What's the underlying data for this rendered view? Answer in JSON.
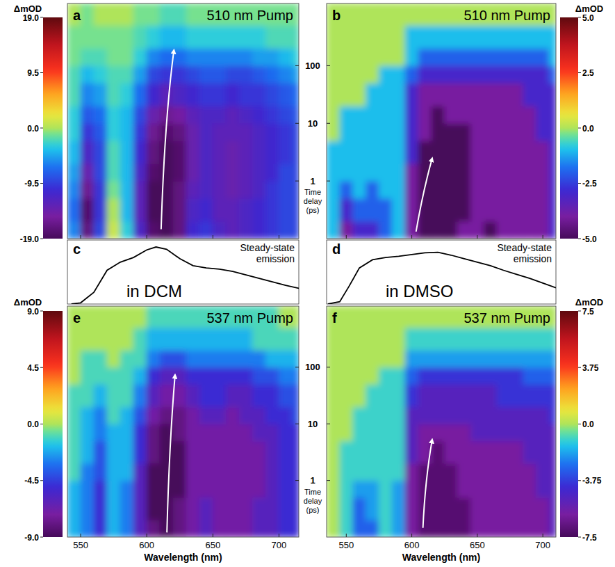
{
  "chart_data": [
    {
      "type": "heatmap",
      "label": "a",
      "title": "510 nm Pump",
      "ylabel": "Time delay (ps)",
      "log": "y",
      "tick_labels": "y",
      "xlim": [
        540,
        715
      ],
      "xticks": [
        550,
        600,
        650,
        700
      ],
      "ylim": [
        0.1,
        1200
      ],
      "yticks": [
        1,
        10,
        100
      ],
      "x_edges": [
        540,
        550,
        560,
        570,
        580,
        590,
        600,
        610,
        620,
        630,
        640,
        650,
        660,
        670,
        680,
        690,
        700,
        710,
        715
      ],
      "y_edges": [
        0.1,
        0.2,
        0.5,
        1,
        2,
        5,
        10,
        20,
        50,
        100,
        200,
        500,
        1200
      ],
      "cells": [
        [
          -6,
          -17,
          -9,
          1,
          -3,
          -12,
          -18,
          -19,
          -17,
          -11,
          -10,
          -12,
          -13,
          -12,
          -11,
          -10,
          -9,
          -9
        ],
        [
          -7,
          -18,
          -10,
          0,
          -4,
          -13,
          -19,
          -19,
          -17,
          -12,
          -11,
          -13,
          -13,
          -12,
          -11,
          -10,
          -9,
          -9
        ],
        [
          -6,
          -16,
          -10,
          -1,
          -4,
          -13,
          -19,
          -19,
          -17,
          -13,
          -12,
          -13,
          -14,
          -13,
          -12,
          -10,
          -9,
          -9
        ],
        [
          -5,
          -14,
          -9,
          -2,
          -4,
          -12,
          -18,
          -19,
          -18,
          -14,
          -12,
          -13,
          -14,
          -13,
          -12,
          -11,
          -9,
          -9
        ],
        [
          -4,
          -12,
          -9,
          -2,
          -4,
          -11,
          -17,
          -19,
          -18,
          -14,
          -12,
          -13,
          -14,
          -13,
          -12,
          -11,
          -10,
          -9
        ],
        [
          -3,
          -10,
          -8,
          -3,
          -4,
          -10,
          -16,
          -18,
          -17,
          -14,
          -12,
          -13,
          -13,
          -13,
          -12,
          -11,
          -10,
          -9
        ],
        [
          -3,
          -8,
          -7,
          -3,
          -4,
          -9,
          -14,
          -16,
          -15,
          -13,
          -12,
          -12,
          -13,
          -12,
          -11,
          -10,
          -9,
          -8
        ],
        [
          -2,
          -6,
          -5,
          -2,
          -3,
          -7,
          -11,
          -13,
          -12,
          -11,
          -10,
          -10,
          -11,
          -10,
          -10,
          -9,
          -8,
          -7
        ],
        [
          -2,
          -4,
          -3,
          -2,
          -2,
          -5,
          -9,
          -10,
          -10,
          -9,
          -8,
          -8,
          -9,
          -9,
          -8,
          -7,
          -6,
          -5
        ],
        [
          -1,
          -2,
          -2,
          -1,
          -1,
          -3,
          -6,
          -7,
          -7,
          -6,
          -6,
          -6,
          -6,
          -6,
          -5,
          -5,
          -4,
          -3
        ],
        [
          -1,
          -1,
          -1,
          -1,
          -1,
          -2,
          -3,
          -4,
          -4,
          -3,
          -3,
          -3,
          -3,
          -3,
          -3,
          -2,
          -2,
          -2
        ],
        [
          0,
          -1,
          0,
          0,
          0,
          -1,
          -1,
          -2,
          -2,
          -1,
          -1,
          -1,
          -1,
          -1,
          -1,
          -1,
          -1,
          -1
        ]
      ],
      "colorbar": {
        "label": "ΔmOD",
        "range": [
          -19,
          19
        ],
        "ticks": [
          {
            "value": 19,
            "label": "19.0"
          },
          9.5,
          {
            "value": 0,
            "label": "0.0"
          },
          -9.5,
          {
            "value": -19,
            "label": "-19.0"
          }
        ]
      }
    },
    {
      "type": "heatmap",
      "label": "b",
      "title": "510 nm Pump",
      "log": "y",
      "tick_labels": false,
      "xlim": [
        535,
        710
      ],
      "xticks": [
        550,
        600,
        650,
        700
      ],
      "ylim": [
        0.1,
        1200
      ],
      "yticks": [
        1,
        10,
        100
      ],
      "x_edges": [
        535,
        545,
        555,
        565,
        575,
        585,
        595,
        605,
        615,
        625,
        635,
        645,
        655,
        665,
        675,
        685,
        695,
        705,
        710
      ],
      "y_edges": [
        0.1,
        0.2,
        0.5,
        1,
        2,
        5,
        10,
        20,
        50,
        100,
        200,
        500,
        1200
      ],
      "cells": [
        [
          -1,
          -4,
          -3,
          -3,
          -2,
          -1,
          -4,
          -5,
          -5,
          -5,
          -4,
          -4,
          -5,
          -4,
          -4,
          -4,
          -4,
          -3
        ],
        [
          -1,
          -3,
          -2,
          -2,
          -2,
          -1,
          -4,
          -5,
          -5,
          -5,
          -5,
          -4,
          -4,
          -4,
          -4,
          -4,
          -4,
          -3
        ],
        [
          -1,
          -2,
          -1,
          -2,
          -1,
          -1,
          -4,
          -5,
          -5,
          -5,
          -5,
          -4,
          -4,
          -4,
          -4,
          -4,
          -4,
          -3
        ],
        [
          -1,
          -1,
          -1,
          -1,
          -1,
          -1,
          -4,
          -5,
          -5,
          -5,
          -5,
          -4,
          -4,
          -4,
          -4,
          -4,
          -4,
          -3
        ],
        [
          -1,
          -1,
          -1,
          -1,
          -1,
          -1,
          -3,
          -5,
          -5,
          -5,
          -5,
          -4,
          -4,
          -4,
          -4,
          -4,
          -4,
          -3
        ],
        [
          0,
          -1,
          -1,
          -1,
          -1,
          -1,
          -3,
          -4,
          -5,
          -5,
          -5,
          -4,
          -4,
          -4,
          -4,
          -4,
          -3,
          -3
        ],
        [
          0,
          -1,
          -1,
          -1,
          -1,
          -1,
          -3,
          -4,
          -5,
          -4,
          -4,
          -4,
          -4,
          -4,
          -4,
          -4,
          -3,
          -3
        ],
        [
          0,
          0,
          0,
          -1,
          -1,
          -1,
          -3,
          -4,
          -4,
          -4,
          -4,
          -4,
          -4,
          -4,
          -4,
          -3,
          -3,
          -3
        ],
        [
          0,
          0,
          0,
          0,
          -1,
          -1,
          -2,
          -3,
          -3,
          -3,
          -3,
          -3,
          -3,
          -3,
          -3,
          -3,
          -3,
          -2
        ],
        [
          0,
          0,
          0,
          0,
          0,
          0,
          -1,
          -2,
          -2,
          -2,
          -2,
          -2,
          -2,
          -2,
          -2,
          -2,
          -2,
          -1
        ],
        [
          0,
          0,
          0,
          0,
          0,
          0,
          -1,
          -1,
          -1,
          -1,
          -1,
          -1,
          -1,
          -1,
          -1,
          -1,
          -1,
          -1
        ],
        [
          0,
          0,
          0,
          0,
          0,
          0,
          0,
          0,
          0,
          0,
          0,
          0,
          0,
          0,
          0,
          0,
          0,
          0
        ]
      ],
      "colorbar": {
        "label": "ΔmOD",
        "range": [
          -5,
          5
        ],
        "ticks": [
          {
            "value": 5,
            "label": "5.0"
          },
          2.5,
          {
            "value": 0,
            "label": "0.0"
          },
          -2.5,
          {
            "value": -5,
            "label": "-5.0"
          }
        ]
      }
    },
    {
      "type": "line",
      "label": "c",
      "title": "in DCM",
      "annotation": "Steady-state emission",
      "tick_labels": false,
      "xlim": [
        540,
        715
      ],
      "ylim": [
        0,
        1.1
      ],
      "x": [
        543,
        550,
        560,
        570,
        580,
        590,
        600,
        607,
        615,
        625,
        635,
        645,
        655,
        665,
        675,
        685,
        695,
        705,
        715
      ],
      "values": [
        0,
        0.02,
        0.2,
        0.58,
        0.72,
        0.8,
        0.93,
        0.98,
        0.94,
        0.78,
        0.66,
        0.62,
        0.6,
        0.56,
        0.5,
        0.44,
        0.38,
        0.32,
        0.27
      ],
      "color": "#000000"
    },
    {
      "type": "line",
      "label": "d",
      "title": "in DMSO",
      "annotation": "Steady-state emission",
      "tick_labels": false,
      "xlim": [
        535,
        710
      ],
      "ylim": [
        0,
        1.1
      ],
      "x": [
        536,
        545,
        552,
        560,
        570,
        580,
        590,
        600,
        610,
        620,
        630,
        640,
        650,
        660,
        670,
        680,
        690,
        700,
        710
      ],
      "values": [
        0,
        0.04,
        0.3,
        0.62,
        0.76,
        0.8,
        0.82,
        0.85,
        0.88,
        0.89,
        0.84,
        0.78,
        0.72,
        0.66,
        0.58,
        0.51,
        0.44,
        0.36,
        0.28
      ],
      "color": "#000000"
    },
    {
      "type": "heatmap",
      "label": "e",
      "title": "537 nm Pump",
      "xlabel": "Wavelength (nm)",
      "ylabel": "Time delay (ps)",
      "log": "y",
      "xlim": [
        540,
        715
      ],
      "xticks": [
        550,
        600,
        650,
        700
      ],
      "ylim": [
        0.1,
        1200
      ],
      "yticks": [
        1,
        10,
        100
      ],
      "x_edges": [
        540,
        550,
        560,
        570,
        580,
        590,
        600,
        610,
        620,
        630,
        640,
        650,
        660,
        670,
        680,
        690,
        700,
        710,
        715
      ],
      "y_edges": [
        0.1,
        0.2,
        0.5,
        1,
        2,
        5,
        10,
        20,
        50,
        100,
        200,
        500,
        1200
      ],
      "cells": [
        [
          -2,
          -3,
          -5,
          -2,
          -3,
          -6,
          -8,
          -9,
          -8,
          -7,
          -6,
          -7,
          -7,
          -7,
          -6,
          -6,
          -5,
          -5
        ],
        [
          -2,
          -3,
          -5,
          -2,
          -3,
          -6,
          -9,
          -9,
          -8,
          -7,
          -6,
          -7,
          -7,
          -7,
          -6,
          -6,
          -5,
          -5
        ],
        [
          -2,
          -3,
          -5,
          -2,
          -3,
          -6,
          -9,
          -9,
          -9,
          -7,
          -7,
          -7,
          -7,
          -7,
          -7,
          -6,
          -5,
          -5
        ],
        [
          -1,
          -3,
          -4,
          -2,
          -2,
          -6,
          -9,
          -9,
          -9,
          -7,
          -7,
          -7,
          -7,
          -7,
          -7,
          -6,
          -5,
          -5
        ],
        [
          -1,
          -2,
          -4,
          -2,
          -2,
          -5,
          -8,
          -9,
          -9,
          -7,
          -7,
          -7,
          -7,
          -7,
          -7,
          -6,
          -5,
          -5
        ],
        [
          -1,
          -2,
          -3,
          -2,
          -2,
          -5,
          -8,
          -9,
          -8,
          -7,
          -7,
          -7,
          -7,
          -7,
          -6,
          -6,
          -5,
          -5
        ],
        [
          -1,
          -2,
          -3,
          -1,
          -2,
          -4,
          -7,
          -8,
          -8,
          -7,
          -6,
          -6,
          -7,
          -6,
          -6,
          -5,
          -5,
          -4
        ],
        [
          -1,
          -1,
          -2,
          -1,
          -1,
          -3,
          -6,
          -7,
          -7,
          -6,
          -5,
          -5,
          -6,
          -6,
          -5,
          -5,
          -4,
          -4
        ],
        [
          0,
          -1,
          -1,
          -1,
          -1,
          -2,
          -5,
          -6,
          -6,
          -5,
          -5,
          -5,
          -5,
          -5,
          -4,
          -4,
          -3,
          -3
        ],
        [
          0,
          -1,
          -1,
          0,
          -1,
          -1,
          -3,
          -4,
          -4,
          -3,
          -3,
          -3,
          -3,
          -3,
          -3,
          -2,
          -2,
          -2
        ],
        [
          0,
          0,
          0,
          0,
          0,
          -1,
          -2,
          -2,
          -2,
          -2,
          -2,
          -2,
          -2,
          -2,
          -1,
          -1,
          -1,
          -1
        ],
        [
          0,
          0,
          0,
          0,
          0,
          0,
          -1,
          -1,
          -1,
          -1,
          -1,
          -1,
          -1,
          -1,
          -1,
          -1,
          0,
          0
        ]
      ],
      "colorbar": {
        "label": "ΔmOD",
        "range": [
          -9,
          9
        ],
        "ticks": [
          {
            "value": 9,
            "label": "9.0"
          },
          4.5,
          {
            "value": 0,
            "label": "0.0"
          },
          -4.5,
          {
            "value": -9,
            "label": "-9.0"
          }
        ]
      }
    },
    {
      "type": "heatmap",
      "label": "f",
      "title": "537 nm Pump",
      "xlabel": "Wavelength (nm)",
      "log": "y",
      "tick_labels": "x",
      "xlim": [
        535,
        710
      ],
      "xticks": [
        550,
        600,
        650,
        700
      ],
      "ylim": [
        0.1,
        1200
      ],
      "yticks": [
        1,
        10,
        100
      ],
      "x_edges": [
        535,
        545,
        555,
        565,
        575,
        585,
        595,
        605,
        615,
        625,
        635,
        645,
        655,
        665,
        675,
        685,
        695,
        705,
        710
      ],
      "y_edges": [
        0.1,
        0.2,
        0.5,
        1,
        2,
        5,
        10,
        20,
        50,
        100,
        200,
        500,
        1200
      ],
      "cells": [
        [
          0,
          -1,
          -3,
          -3,
          -1,
          -2,
          -6,
          -7,
          -7,
          -7,
          -7,
          -6,
          -6,
          -6,
          -6,
          -6,
          -6,
          -5
        ],
        [
          0,
          -1,
          -3,
          -2,
          -1,
          -2,
          -6,
          -7,
          -7,
          -7,
          -7,
          -6,
          -6,
          -6,
          -6,
          -6,
          -6,
          -5
        ],
        [
          0,
          -1,
          -2,
          -2,
          -1,
          -2,
          -6,
          -7,
          -7,
          -7,
          -6,
          -6,
          -6,
          -6,
          -6,
          -6,
          -5,
          -5
        ],
        [
          0,
          -1,
          -1,
          -1,
          -1,
          -1,
          -6,
          -7,
          -7,
          -7,
          -6,
          -6,
          -6,
          -6,
          -6,
          -6,
          -5,
          -5
        ],
        [
          0,
          -1,
          -1,
          -1,
          -1,
          -1,
          -5,
          -6,
          -7,
          -6,
          -6,
          -6,
          -6,
          -6,
          -6,
          -5,
          -5,
          -5
        ],
        [
          0,
          0,
          -1,
          -1,
          -1,
          -1,
          -5,
          -6,
          -6,
          -6,
          -6,
          -5,
          -5,
          -5,
          -5,
          -5,
          -5,
          -5
        ],
        [
          0,
          0,
          -1,
          -1,
          -1,
          -1,
          -5,
          -5,
          -5,
          -5,
          -5,
          -5,
          -5,
          -5,
          -5,
          -5,
          -5,
          -4
        ],
        [
          0,
          0,
          0,
          -1,
          -1,
          -1,
          -4,
          -5,
          -5,
          -5,
          -5,
          -5,
          -5,
          -4,
          -4,
          -4,
          -4,
          -4
        ],
        [
          0,
          0,
          0,
          0,
          -1,
          -1,
          -3,
          -4,
          -4,
          -4,
          -4,
          -4,
          -4,
          -4,
          -4,
          -3,
          -3,
          -3
        ],
        [
          0,
          0,
          0,
          0,
          0,
          0,
          -2,
          -2,
          -2,
          -2,
          -2,
          -2,
          -2,
          -2,
          -2,
          -2,
          -2,
          -2
        ],
        [
          0,
          0,
          0,
          0,
          0,
          0,
          -1,
          -1,
          -1,
          -1,
          -1,
          -1,
          -1,
          -1,
          -1,
          -1,
          -1,
          -1
        ],
        [
          0,
          0,
          0,
          0,
          0,
          0,
          0,
          0,
          0,
          0,
          0,
          0,
          0,
          0,
          0,
          0,
          0,
          0
        ]
      ],
      "colorbar": {
        "label": "ΔmOD",
        "range": [
          -7.5,
          7.5
        ],
        "ticks": [
          7.5,
          3.75,
          {
            "value": 0,
            "label": "0.0"
          },
          -3.75,
          -7.5
        ]
      }
    }
  ]
}
